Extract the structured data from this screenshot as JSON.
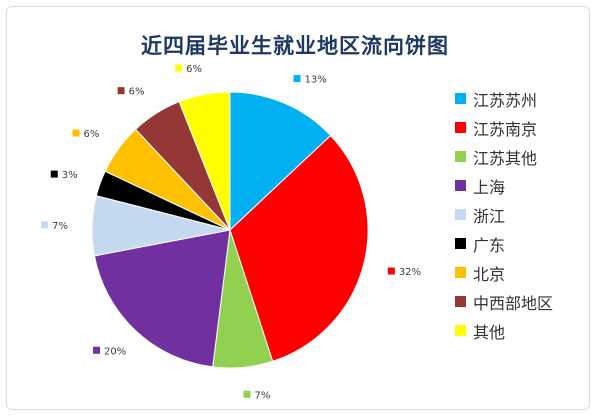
{
  "chart_data": {
    "type": "pie",
    "title": "近四届毕业生就业地区流向饼图",
    "legend_position": "right",
    "labels": [
      "江苏苏州",
      "江苏南京",
      "江苏其他",
      "上海",
      "浙江",
      "广东",
      "北京",
      "中西部地区",
      "其他"
    ],
    "values": [
      13,
      32,
      7,
      20,
      7,
      3,
      6,
      6,
      6
    ],
    "value_labels": [
      "13%",
      "32%",
      "7%",
      "20%",
      "7%",
      "3%",
      "6%",
      "6%",
      "6%"
    ],
    "colors": [
      "#00b0f0",
      "#ff0000",
      "#92d050",
      "#7030a0",
      "#c5d9f1",
      "#000000",
      "#ffc000",
      "#953735",
      "#ffff00"
    ]
  }
}
